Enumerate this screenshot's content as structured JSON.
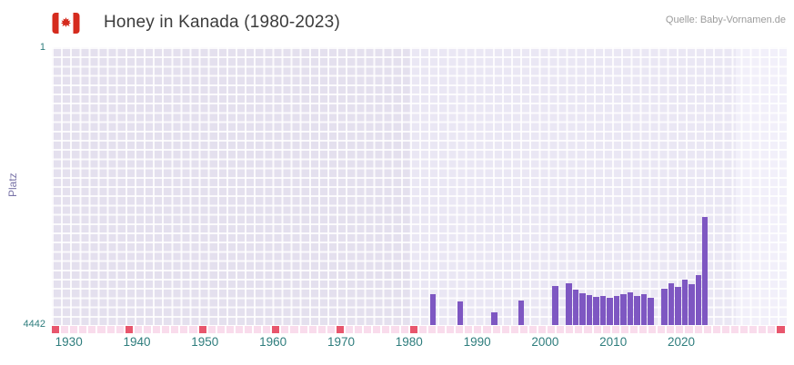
{
  "header": {
    "title": "Honey in Kanada (1980-2023)",
    "source": "Quelle: Baby-Vornamen.de",
    "flag_icon": "canada-flag"
  },
  "colors": {
    "bar": "#7e57c2",
    "band_pre_data": "#e4e0ee",
    "band_data": "#eae7f4",
    "band_right": "#f2f0fa",
    "grid_line": "#ffffff",
    "strip_light": "#f9dcec",
    "strip_highlight": "#e8566d",
    "title_text": "#3c3c3c",
    "source_text": "#9b9b9b",
    "tick_text": "#2e7d7d",
    "y_title_text": "#7a74a8",
    "flag_red": "#d52b1e"
  },
  "background_bands": [
    {
      "name": "pre-data",
      "from": 1927.5,
      "to": 1980,
      "color": "#e4e0ee"
    },
    {
      "name": "data",
      "from": 1980,
      "to": 2028,
      "color": "#eae7f4"
    },
    {
      "name": "right",
      "from": 2028,
      "to": 2035.5,
      "color": "#f2f0fa"
    }
  ],
  "bottom_strip": {
    "cell_count": 80,
    "highlight_cells": [
      0,
      8,
      16,
      24,
      31,
      39,
      79
    ],
    "light_color": "#f9dcec",
    "highlight_color": "#e8566d"
  },
  "chart_data": {
    "type": "bar",
    "title": "Honey in Kanada (1980-2023)",
    "source": "Quelle: Baby-Vornamen.de",
    "ylabel": "Platz",
    "xlabel": "",
    "y_inverted": true,
    "ylim": [
      1,
      4442
    ],
    "y_ticks": [
      "1",
      "4442"
    ],
    "x_axis_range": [
      1927.5,
      2035.5
    ],
    "x_ticks": [
      1930,
      1940,
      1950,
      1960,
      1970,
      1980,
      1990,
      2000,
      2010,
      2020
    ],
    "grid": true,
    "legend": false,
    "series": [
      {
        "name": "Platz von Honey in Kanada",
        "points": [
          [
            1983,
            3950
          ],
          [
            1987,
            4060
          ],
          [
            1992,
            4240
          ],
          [
            1996,
            4050
          ],
          [
            2001,
            3820
          ],
          [
            2003,
            3780
          ],
          [
            2004,
            3880
          ],
          [
            2005,
            3930
          ],
          [
            2006,
            3960
          ],
          [
            2007,
            3990
          ],
          [
            2008,
            3970
          ],
          [
            2009,
            4000
          ],
          [
            2010,
            3980
          ],
          [
            2011,
            3950
          ],
          [
            2012,
            3920
          ],
          [
            2013,
            3980
          ],
          [
            2014,
            3950
          ],
          [
            2015,
            4000
          ],
          [
            2017,
            3860
          ],
          [
            2018,
            3770
          ],
          [
            2019,
            3830
          ],
          [
            2020,
            3720
          ],
          [
            2021,
            3790
          ],
          [
            2022,
            3640
          ],
          [
            2023,
            2710
          ]
        ]
      }
    ]
  }
}
